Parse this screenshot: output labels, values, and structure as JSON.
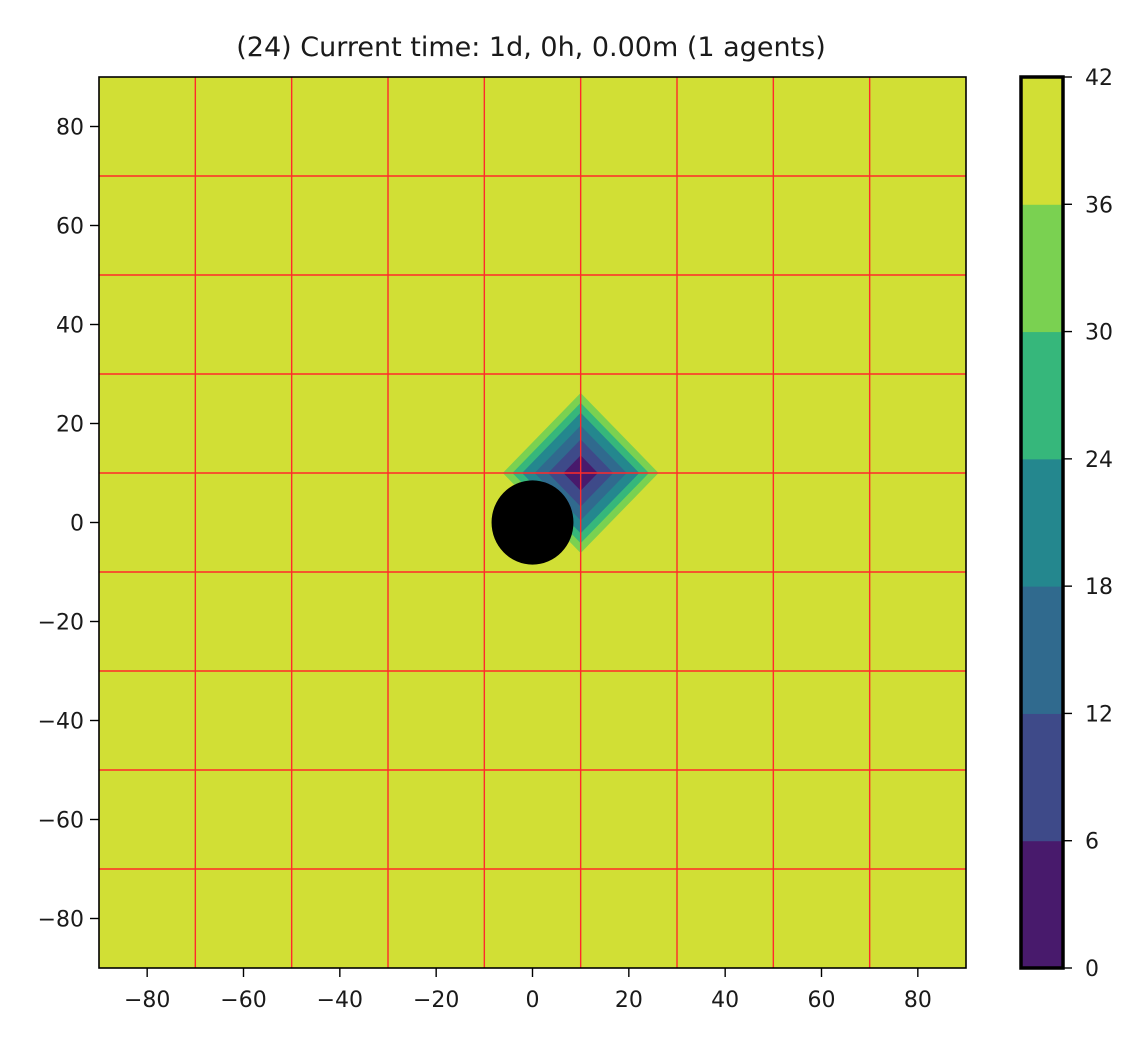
{
  "chart_data": {
    "type": "heatmap",
    "title": "(24) Current time: 1d, 0h, 0.00m (1 agents)",
    "xlabel": "",
    "ylabel": "",
    "xlim": [
      -90,
      90
    ],
    "ylim": [
      -90,
      90
    ],
    "x_ticks": [
      -80,
      -60,
      -40,
      -20,
      0,
      20,
      40,
      60,
      80
    ],
    "y_ticks": [
      -80,
      -60,
      -40,
      -20,
      0,
      20,
      40,
      60,
      80
    ],
    "x_tick_labels": [
      "−80",
      "−60",
      "−40",
      "−20",
      "0",
      "20",
      "40",
      "60",
      "80"
    ],
    "y_tick_labels": [
      "−80",
      "−60",
      "−40",
      "−20",
      "0",
      "20",
      "40",
      "60",
      "80"
    ],
    "grid": {
      "on": true,
      "color": "#ff2a2a",
      "x_lines": [
        -70,
        -50,
        -30,
        -10,
        10,
        30,
        50,
        70
      ],
      "y_lines": [
        -70,
        -50,
        -30,
        -10,
        10,
        30,
        50,
        70
      ]
    },
    "field": {
      "description_units": "level per 1-norm distance from source",
      "source_x": 10,
      "source_y": 10,
      "levels": [
        0,
        6,
        12,
        18,
        24,
        30,
        36,
        42
      ],
      "level_colors": [
        "#481a6c",
        "#3e4a89",
        "#306a8e",
        "#24878e",
        "#36b77b",
        "#7ad151",
        "#d1df35"
      ],
      "contour_radii": [
        3.4,
        6.6,
        9.4,
        12,
        14,
        16
      ],
      "background_level_color": "#d1df35"
    },
    "agents": [
      {
        "x": 0,
        "y": 0,
        "radius": 8.5,
        "color": "#000000"
      }
    ],
    "colorbar": {
      "min": 0,
      "max": 42,
      "ticks": [
        0,
        6,
        12,
        18,
        24,
        30,
        36,
        42
      ],
      "tick_labels": [
        "0",
        "6",
        "12",
        "18",
        "24",
        "30",
        "36",
        "42"
      ]
    }
  }
}
